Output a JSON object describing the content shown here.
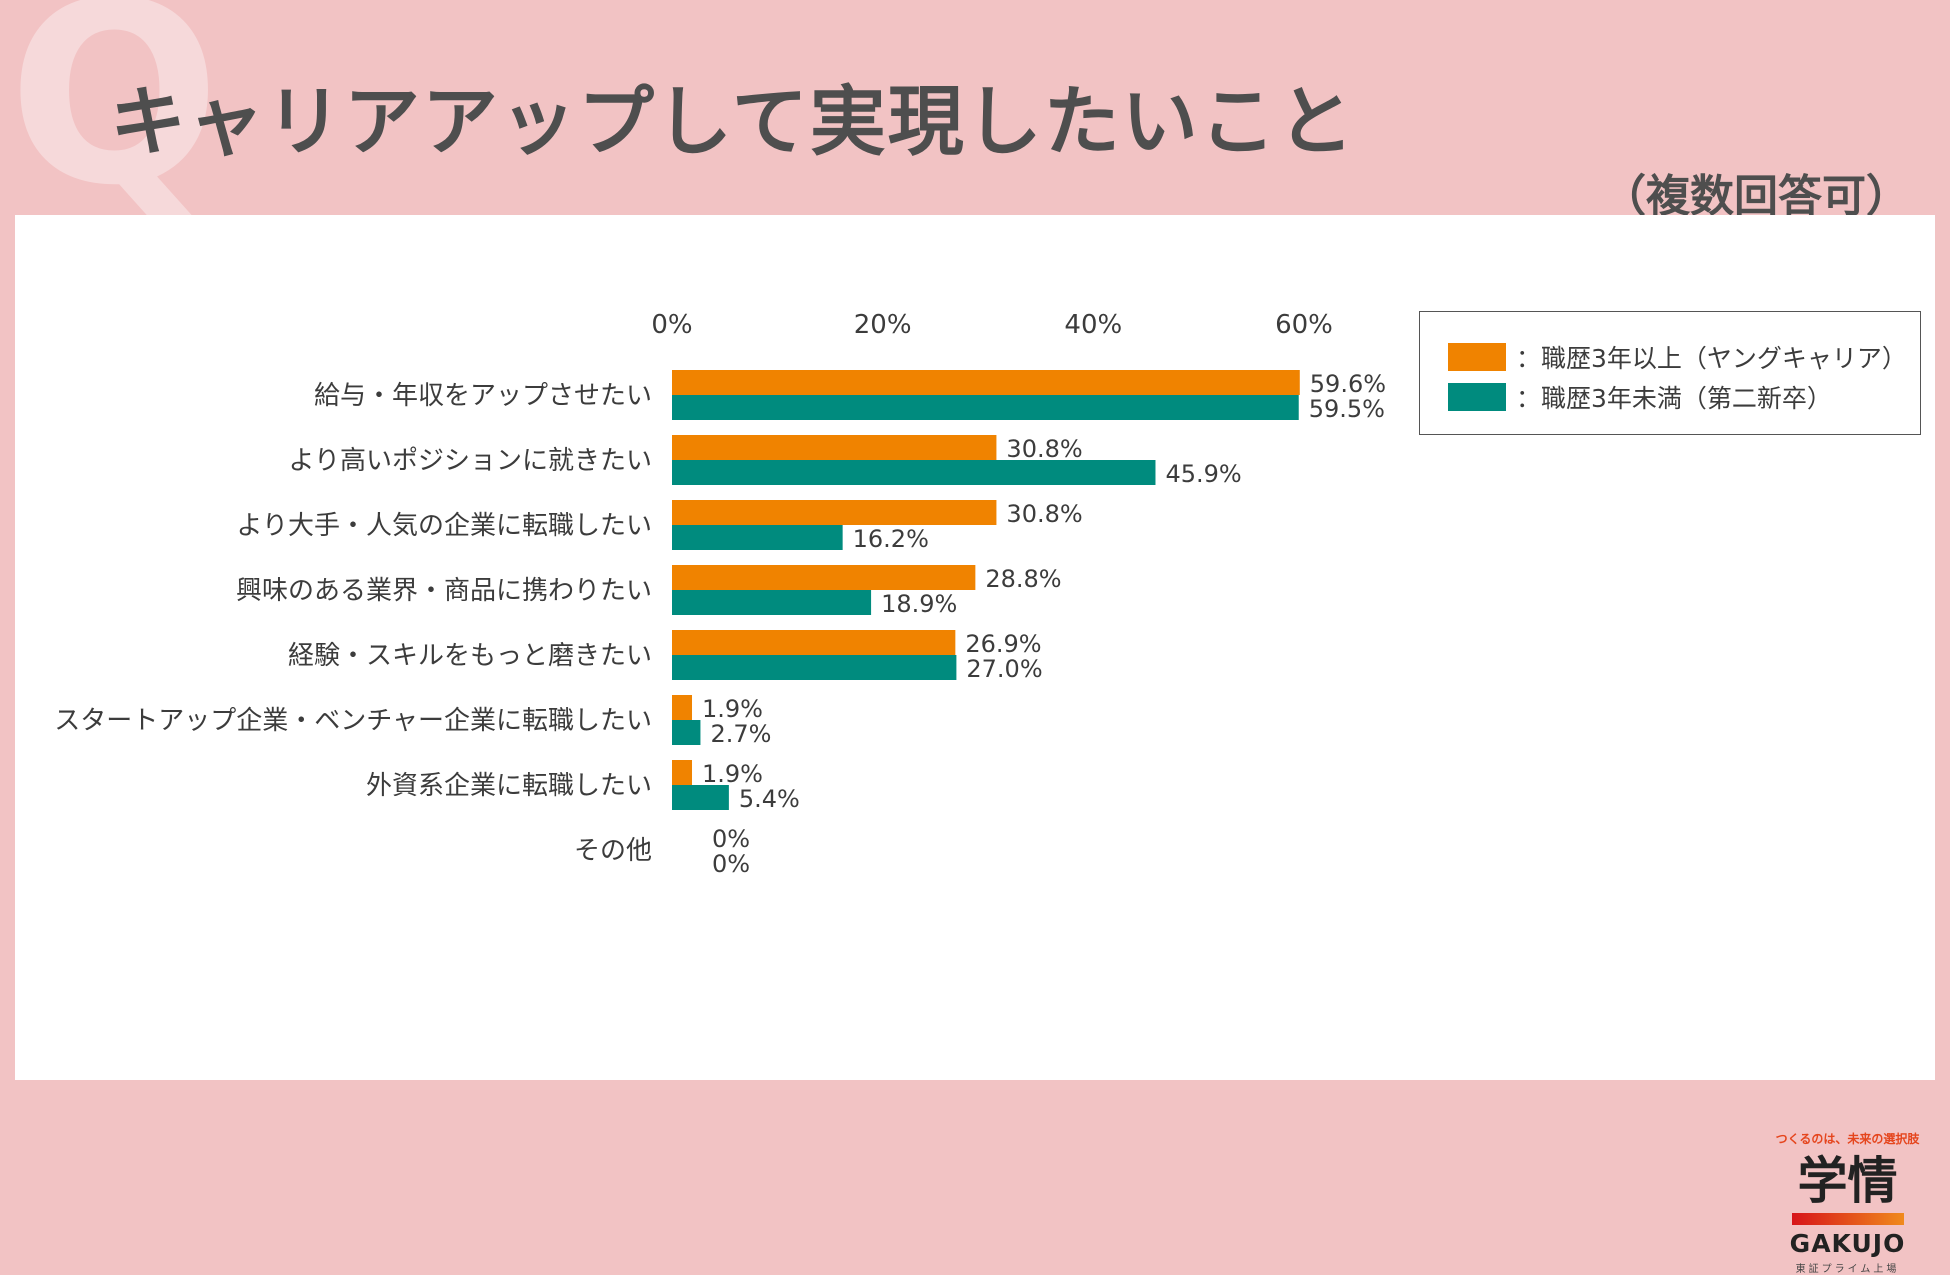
{
  "header": {
    "watermark": "Q",
    "title": "キャリアアップして実現したいこと",
    "subtitle": "（複数回答可）"
  },
  "legend": {
    "items": [
      {
        "label": "：職歴3年以上（ヤングキャリア）",
        "color": "#f08300"
      },
      {
        "label": "：職歴3年未満（第二新卒）",
        "color": "#008b7e"
      }
    ]
  },
  "chart_data": {
    "type": "bar",
    "orientation": "horizontal",
    "xlim": [
      0,
      60
    ],
    "xticks": [
      0,
      20,
      40,
      60
    ],
    "tick_labels": [
      "0%",
      "20%",
      "40%",
      "60%"
    ],
    "categories": [
      "給与・年収をアップさせたい",
      "より高いポジションに就きたい",
      "より大手・人気の企業に転職したい",
      "興味のある業界・商品に携わりたい",
      "経験・スキルをもっと磨きたい",
      "スタートアップ企業・ベンチャー企業に転職したい",
      "外資系企業に転職したい",
      "その他"
    ],
    "series": [
      {
        "name": "職歴3年以上（ヤングキャリア）",
        "color": "#f08300",
        "values": [
          59.6,
          30.8,
          30.8,
          28.8,
          26.9,
          1.9,
          1.9,
          0
        ],
        "labels": [
          "59.6%",
          "30.8%",
          "30.8%",
          "28.8%",
          "26.9%",
          "1.9%",
          "1.9%",
          "0%"
        ]
      },
      {
        "name": "職歴3年未満（第二新卒）",
        "color": "#008b7e",
        "values": [
          59.5,
          45.9,
          16.2,
          18.9,
          27.0,
          2.7,
          5.4,
          0
        ],
        "labels": [
          "59.5%",
          "45.9%",
          "16.2%",
          "18.9%",
          "27.0%",
          "2.7%",
          "5.4%",
          "0%"
        ]
      }
    ],
    "legend_position": "top-right",
    "grid": false
  },
  "logo": {
    "tagline": "つくるのは、未来の選択肢",
    "mark": "学情",
    "english": "GAKUJO",
    "market": "東証プライム上場"
  }
}
